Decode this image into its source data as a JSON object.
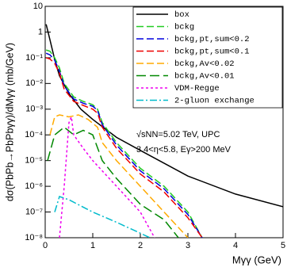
{
  "chart_data": {
    "type": "line",
    "xlabel": "Mγγ (GeV)",
    "ylabel": "dσ(PbPb→PbPbγγ)/dMγγ (mb/GeV)",
    "annotations": [
      "√sNN=5.02 TeV, UPC",
      "3.4<η<5.8, Eγ>200 MeV"
    ],
    "xlim": [
      0,
      5
    ],
    "xticks": [
      0,
      1,
      2,
      3,
      4,
      5
    ],
    "ylim": [
      1e-08,
      10
    ],
    "ylog": true,
    "yticks": [
      {
        "value": 1e-08,
        "label": "10⁻⁸"
      },
      {
        "value": 1e-07,
        "label": "10⁻⁷"
      },
      {
        "value": 1e-06,
        "label": "10⁻⁶"
      },
      {
        "value": 1e-05,
        "label": "10⁻⁵"
      },
      {
        "value": 0.0001,
        "label": "10⁻⁴"
      },
      {
        "value": 0.001,
        "label": "10⁻³"
      },
      {
        "value": 0.01,
        "label": "10⁻²"
      },
      {
        "value": 0.1,
        "label": "10⁻¹"
      },
      1,
      10
    ],
    "legend": "upper right",
    "series": [
      {
        "name": "box",
        "color": "#000000",
        "x": [
          0.02,
          0.1,
          0.2,
          0.3,
          0.5,
          0.75,
          1,
          1.5,
          2,
          3,
          4,
          5
        ],
        "values": [
          2,
          0.5,
          0.085,
          0.02,
          0.004,
          0.001,
          0.0004,
          8e-05,
          2.5e-05,
          2.5e-06,
          5e-07,
          1.6e-07
        ]
      },
      {
        "name": "bckg",
        "color": "#22cc22",
        "x": [
          0.02,
          0.1,
          0.2,
          0.3,
          0.4,
          0.6,
          0.8,
          1,
          1.1,
          1.2,
          1.5,
          2,
          2.5,
          3,
          3.3
        ],
        "values": [
          0.2,
          0.18,
          0.1,
          0.04,
          0.01,
          0.003,
          0.002,
          0.0015,
          0.001,
          0.0003,
          5e-05,
          5e-06,
          1e-06,
          1e-07,
          1e-08
        ]
      },
      {
        "name": "bckg,pt,sum<0.2",
        "color": "#0000dd",
        "x": [
          0.02,
          0.1,
          0.2,
          0.3,
          0.4,
          0.6,
          0.8,
          1,
          1.1,
          1.2,
          1.5,
          2,
          2.5,
          3,
          3.3
        ],
        "values": [
          0.15,
          0.13,
          0.08,
          0.03,
          0.008,
          0.0025,
          0.0017,
          0.0013,
          0.0009,
          0.00025,
          4e-05,
          4e-06,
          8e-07,
          8e-08,
          1e-08
        ]
      },
      {
        "name": "bckg,pt,sum<0.1",
        "color": "#ee0000",
        "x": [
          0.02,
          0.1,
          0.2,
          0.3,
          0.4,
          0.6,
          0.8,
          1,
          1.1,
          1.2,
          1.5,
          2,
          2.5,
          3,
          3.3
        ],
        "values": [
          0.1,
          0.09,
          0.06,
          0.025,
          0.006,
          0.002,
          0.0014,
          0.001,
          0.0007,
          0.0002,
          3e-05,
          3e-06,
          6e-07,
          6e-08,
          1e-08
        ]
      },
      {
        "name": "bckg,Av<0.02",
        "color": "#ffaa00",
        "x": [
          0.1,
          0.2,
          0.3,
          0.5,
          0.7,
          0.9,
          1.1,
          1.2,
          1.5,
          2,
          2.5,
          3
        ],
        "values": [
          0.0001,
          0.0005,
          0.0006,
          0.0005,
          0.0006,
          0.0004,
          0.0002,
          5e-05,
          1e-05,
          1e-06,
          1e-07,
          1e-08
        ]
      },
      {
        "name": "bckg,Av<0.01",
        "color": "#008800",
        "x": [
          0.05,
          0.2,
          0.4,
          0.6,
          0.8,
          1,
          1.2,
          1.5,
          2,
          2.5,
          2.8
        ],
        "values": [
          1e-05,
          0.0001,
          0.0002,
          0.0001,
          0.00015,
          0.0001,
          1e-05,
          2e-06,
          2e-07,
          5e-08,
          1e-08
        ]
      },
      {
        "name": "VDM-Regge",
        "color": "#ee00ee",
        "x": [
          0.3,
          0.4,
          0.5,
          0.55,
          0.6,
          0.8,
          1,
          1.5,
          2,
          2.3
        ],
        "values": [
          1e-08,
          1e-06,
          0.0003,
          0.0005,
          0.0001,
          3e-05,
          1e-05,
          1e-06,
          1e-07,
          1e-08
        ]
      },
      {
        "name": "2-gluon exchange",
        "color": "#00bbcc",
        "x": [
          0.2,
          0.3,
          0.5,
          1,
          1.5,
          2,
          2.2
        ],
        "values": [
          1e-07,
          4e-07,
          3e-07,
          1e-07,
          4e-08,
          1.5e-08,
          1e-08
        ]
      }
    ]
  }
}
